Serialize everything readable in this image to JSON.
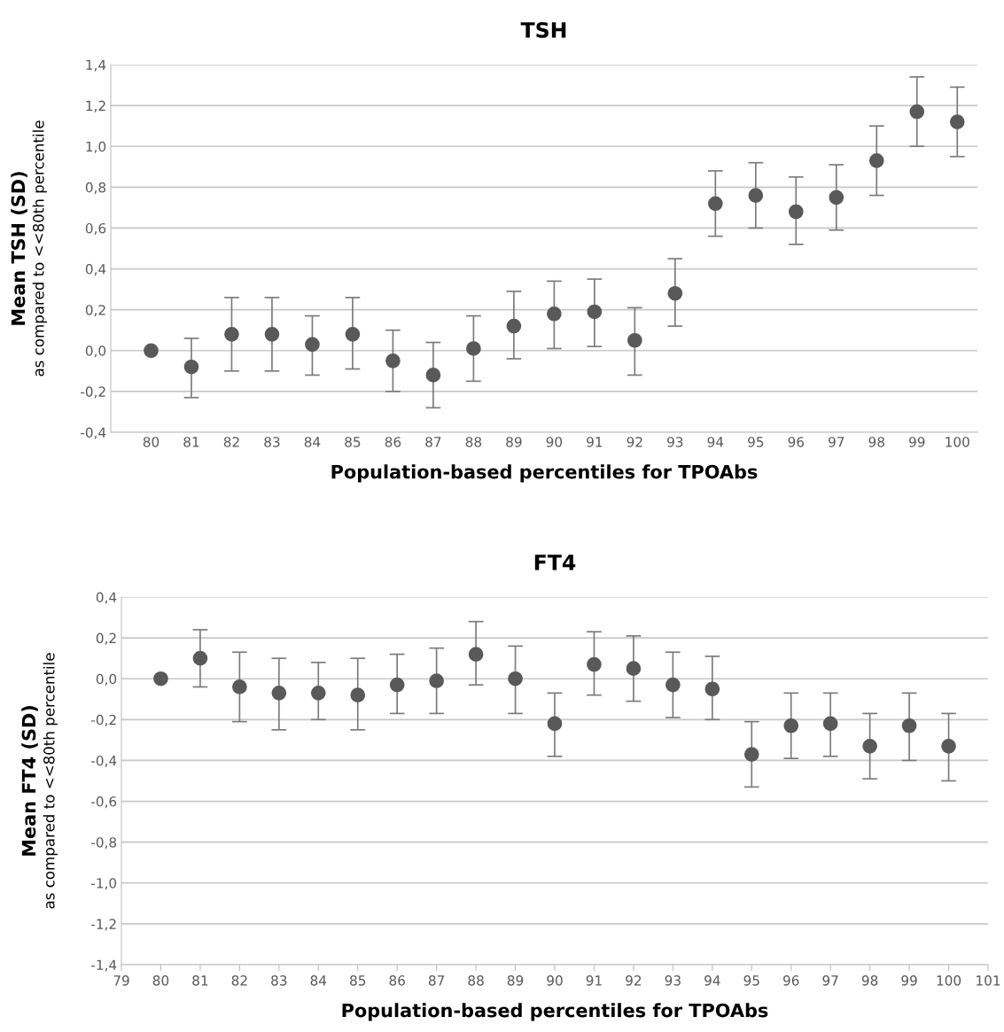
{
  "chart_data": [
    {
      "type": "scatter",
      "title": "TSH",
      "xlabel": "Population-based percentiles for TPOAbs",
      "ylabel": "Mean TSH (SD)\nas compared to <<80th percentile",
      "categories": [
        "80",
        "81",
        "82",
        "83",
        "84",
        "85",
        "86",
        "87",
        "88",
        "89",
        "90",
        "91",
        "92",
        "93",
        "94",
        "95",
        "96",
        "97",
        "98",
        "99",
        "100"
      ],
      "values": [
        0,
        -0.08,
        0.08,
        0.08,
        0.03,
        0.08,
        -0.05,
        -0.12,
        0.01,
        0.12,
        0.18,
        0.19,
        0.05,
        0.28,
        0.72,
        0.76,
        0.68,
        0.75,
        0.93,
        1.17,
        1.12
      ],
      "errors": [
        null,
        [
          -0.23,
          0.06
        ],
        [
          -0.1,
          0.26
        ],
        [
          -0.1,
          0.26
        ],
        [
          -0.12,
          0.17
        ],
        [
          -0.09,
          0.26
        ],
        [
          -0.2,
          0.1
        ],
        [
          -0.28,
          0.04
        ],
        [
          -0.15,
          0.17
        ],
        [
          -0.04,
          0.29
        ],
        [
          0.01,
          0.34
        ],
        [
          0.02,
          0.35
        ],
        [
          -0.12,
          0.21
        ],
        [
          0.12,
          0.45
        ],
        [
          0.56,
          0.88
        ],
        [
          0.6,
          0.92
        ],
        [
          0.52,
          0.85
        ],
        [
          0.59,
          0.91
        ],
        [
          0.76,
          1.1
        ],
        [
          1.0,
          1.34
        ],
        [
          0.95,
          1.29
        ]
      ],
      "color": "#595959",
      "marker": "circle",
      "grid": "y",
      "ylim": [
        -0.4,
        1.4
      ],
      "yticks": [
        {
          "value": -0.4,
          "label": "-0,4"
        },
        {
          "value": -0.2,
          "label": "-0,2"
        },
        {
          "value": 0,
          "label": "0,0"
        },
        {
          "value": 0.2,
          "label": "0,2"
        },
        {
          "value": 0.4,
          "label": "0,4"
        },
        {
          "value": 0.6,
          "label": "0,6"
        },
        {
          "value": 0.8,
          "label": "0,8"
        },
        {
          "value": 1.0,
          "label": "1,0"
        },
        {
          "value": 1.2,
          "label": "1,2"
        },
        {
          "value": 1.4,
          "label": "1,4"
        }
      ]
    },
    {
      "type": "scatter",
      "title": "FT4",
      "xlabel": "Population-based percentiles for TPOAbs",
      "ylabel": "Mean FT4 (SD)\nas compared to <<80th percentile",
      "x": [
        80,
        81,
        82,
        83,
        84,
        85,
        86,
        87,
        88,
        89,
        90,
        91,
        92,
        93,
        94,
        95,
        96,
        97,
        98,
        99,
        100
      ],
      "values": [
        0,
        0.1,
        -0.04,
        -0.07,
        -0.07,
        -0.08,
        -0.03,
        -0.01,
        0.12,
        0,
        -0.22,
        0.07,
        0.05,
        -0.03,
        -0.05,
        -0.37,
        -0.23,
        -0.22,
        -0.33,
        -0.23,
        -0.33
      ],
      "errors": [
        null,
        [
          -0.04,
          0.24
        ],
        [
          -0.21,
          0.13
        ],
        [
          -0.25,
          0.1
        ],
        [
          -0.2,
          0.08
        ],
        [
          -0.25,
          0.1
        ],
        [
          -0.17,
          0.12
        ],
        [
          -0.17,
          0.15
        ],
        [
          -0.03,
          0.28
        ],
        [
          -0.17,
          0.16
        ],
        [
          -0.38,
          -0.07
        ],
        [
          -0.08,
          0.23
        ],
        [
          -0.11,
          0.21
        ],
        [
          -0.19,
          0.13
        ],
        [
          -0.2,
          0.11
        ],
        [
          -0.53,
          -0.21
        ],
        [
          -0.39,
          -0.07
        ],
        [
          -0.38,
          -0.07
        ],
        [
          -0.49,
          -0.17
        ],
        [
          -0.4,
          -0.07
        ],
        [
          -0.5,
          -0.17
        ]
      ],
      "color": "#595959",
      "marker": "circle",
      "grid": "y",
      "xlim": [
        79,
        101
      ],
      "xticks": [
        79,
        80,
        81,
        82,
        83,
        84,
        85,
        86,
        87,
        88,
        89,
        90,
        91,
        92,
        93,
        94,
        95,
        96,
        97,
        98,
        99,
        100,
        101
      ],
      "ylim": [
        -1.4,
        0.4
      ],
      "yticks": [
        {
          "value": -1.4,
          "label": "-1,4"
        },
        {
          "value": -1.2,
          "label": "-1,2"
        },
        {
          "value": -1.0,
          "label": "-1,0"
        },
        {
          "value": -0.8,
          "label": "-0,8"
        },
        {
          "value": -0.6,
          "label": "-0,6"
        },
        {
          "value": -0.4,
          "label": "-0,4"
        },
        {
          "value": -0.2,
          "label": "-0,2"
        },
        {
          "value": 0,
          "label": "0,0"
        },
        {
          "value": 0.2,
          "label": "0,2"
        },
        {
          "value": 0.4,
          "label": "0,4"
        }
      ]
    }
  ]
}
